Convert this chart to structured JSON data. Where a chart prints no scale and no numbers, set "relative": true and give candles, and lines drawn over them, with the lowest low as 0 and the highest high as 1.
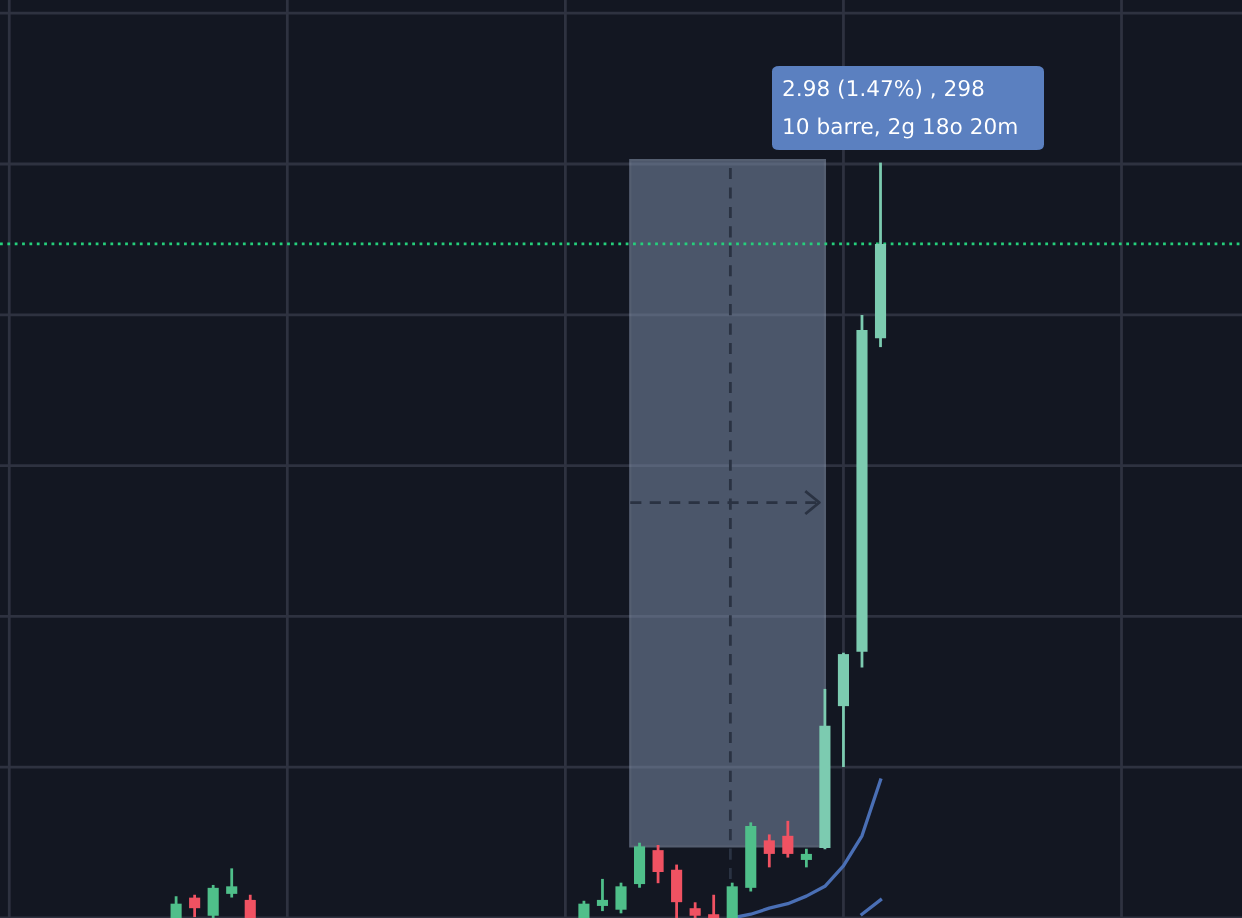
{
  "chart_data": {
    "type": "candlestick",
    "relative": true,
    "grid": true,
    "categories": [
      null,
      null,
      null,
      null,
      null,
      null,
      null,
      null,
      null,
      null,
      null,
      null,
      null,
      null,
      null,
      null,
      null,
      null,
      null,
      null,
      null,
      null,
      null,
      null,
      null,
      null,
      null,
      null,
      null,
      null,
      null,
      null,
      null,
      null,
      null,
      null,
      null,
      null,
      null,
      null,
      null,
      null,
      null,
      null,
      null,
      null,
      null,
      null,
      null,
      null,
      null,
      null,
      null,
      null,
      null,
      null,
      null,
      null,
      null,
      null,
      null,
      null,
      null,
      null,
      null,
      null,
      null
    ],
    "ohlc": [
      null,
      null,
      null,
      null,
      null,
      null,
      null,
      null,
      null,
      [
        0,
        0.027,
        0,
        0.019
      ],
      [
        0.027,
        0.029,
        0.003,
        0.013
      ],
      [
        0.003,
        0.042,
        0,
        0.04
      ],
      [
        0.032,
        0.064,
        0.029,
        0.042
      ],
      [
        0.024,
        0.029,
        0,
        0
      ],
      null,
      null,
      null,
      null,
      null,
      null,
      null,
      null,
      null,
      null,
      null,
      null,
      null,
      null,
      null,
      null,
      null,
      [
        0,
        0.021,
        0,
        0.019
      ],
      [
        0.016,
        0.05,
        0.011,
        0.024
      ],
      [
        0.011,
        0.045,
        0.008,
        0.042
      ],
      [
        0.045,
        0.098,
        0.042,
        0.095
      ],
      [
        0.09,
        0.095,
        0.048,
        0.061
      ],
      [
        0.064,
        0.069,
        0,
        0.021
      ],
      [
        0.013,
        0.019,
        0,
        0.003
      ],
      [
        0.005,
        0.029,
        0,
        0
      ],
      [
        0,
        0.045,
        0,
        0.042
      ],
      [
        0.04,
        0.125,
        0.037,
        0.122
      ],
      [
        0.103,
        0.109,
        0.069,
        0.085
      ],
      [
        0.109,
        0.127,
        0.082,
        0.085
      ],
      [
        0.077,
        0.09,
        0.069,
        0.085
      ],
      [
        0.093,
        0.302,
        0.093,
        0.255
      ],
      [
        0.281,
        0.35,
        0.202,
        0.35
      ],
      [
        0.353,
        0.798,
        0.334,
        0.78
      ],
      [
        0.769,
        1.0,
        0.759,
        0.894
      ],
      null,
      null,
      null,
      null,
      null,
      null,
      null,
      null,
      null,
      null,
      null,
      null,
      null,
      null,
      null,
      null,
      null,
      null,
      null
    ],
    "colors": [
      null,
      null,
      null,
      null,
      null,
      null,
      null,
      null,
      null,
      "#4fbf8a",
      "#f05262",
      "#4fbf8a",
      "#4fbf8a",
      "#f05262",
      null,
      null,
      null,
      null,
      null,
      null,
      null,
      null,
      null,
      null,
      null,
      null,
      null,
      null,
      null,
      null,
      null,
      "#4fbf8a",
      "#4fbf8a",
      "#4fbf8a",
      "#4fbf8a",
      "#f05262",
      "#f05262",
      "#f05262",
      "#f05262",
      "#4fbf8a",
      "#4fbf8a",
      "#f05262",
      "#f05262",
      "#4fbf8a",
      "#7ccbb0",
      "#7ccbb0",
      "#7ccbb0",
      "#7ccbb0",
      null,
      null,
      null,
      null,
      null,
      null,
      null,
      null,
      null,
      null,
      null,
      null,
      null,
      null,
      null,
      null,
      null,
      null,
      null
    ],
    "series": [
      {
        "type": "line",
        "color": "#4a6fb5",
        "values": [
          null,
          null,
          null,
          null,
          null,
          null,
          null,
          null,
          null,
          null,
          null,
          null,
          null,
          null,
          null,
          null,
          null,
          null,
          null,
          null,
          null,
          null,
          null,
          null,
          null,
          null,
          null,
          null,
          null,
          null,
          null,
          null,
          null,
          null,
          null,
          null,
          null,
          null,
          null,
          0,
          0.005,
          0.013,
          0.019,
          0.029,
          0.042,
          0.069,
          0.109,
          0.183,
          null,
          null,
          null,
          null,
          null,
          null,
          null,
          null,
          null,
          null,
          null,
          null,
          null,
          null,
          null,
          null,
          null,
          null,
          null
        ]
      },
      {
        "type": "line",
        "color": "#4a6fb5",
        "values": [
          null,
          null,
          null,
          null,
          null,
          null,
          null,
          null,
          null,
          null,
          null,
          null,
          null,
          null,
          null,
          null,
          null,
          null,
          null,
          null,
          null,
          null,
          null,
          null,
          null,
          null,
          null,
          null,
          null,
          null,
          null,
          null,
          null,
          null,
          null,
          null,
          null,
          null,
          null,
          null,
          null,
          null,
          null,
          null,
          null,
          null,
          0.005,
          0.024,
          null,
          null,
          null,
          null,
          null,
          null,
          null,
          null,
          null,
          null,
          null,
          null,
          null,
          null,
          null,
          null,
          null,
          null,
          null
        ]
      }
    ],
    "ref_lines": [
      {
        "axis": "y",
        "value": 0.894,
        "color": "#26d07c",
        "line_style": "dotted"
      }
    ],
    "annotations": [
      "2.98 (1.47%) , 298",
      "10 barre, 2g 18o 20m"
    ]
  }
}
